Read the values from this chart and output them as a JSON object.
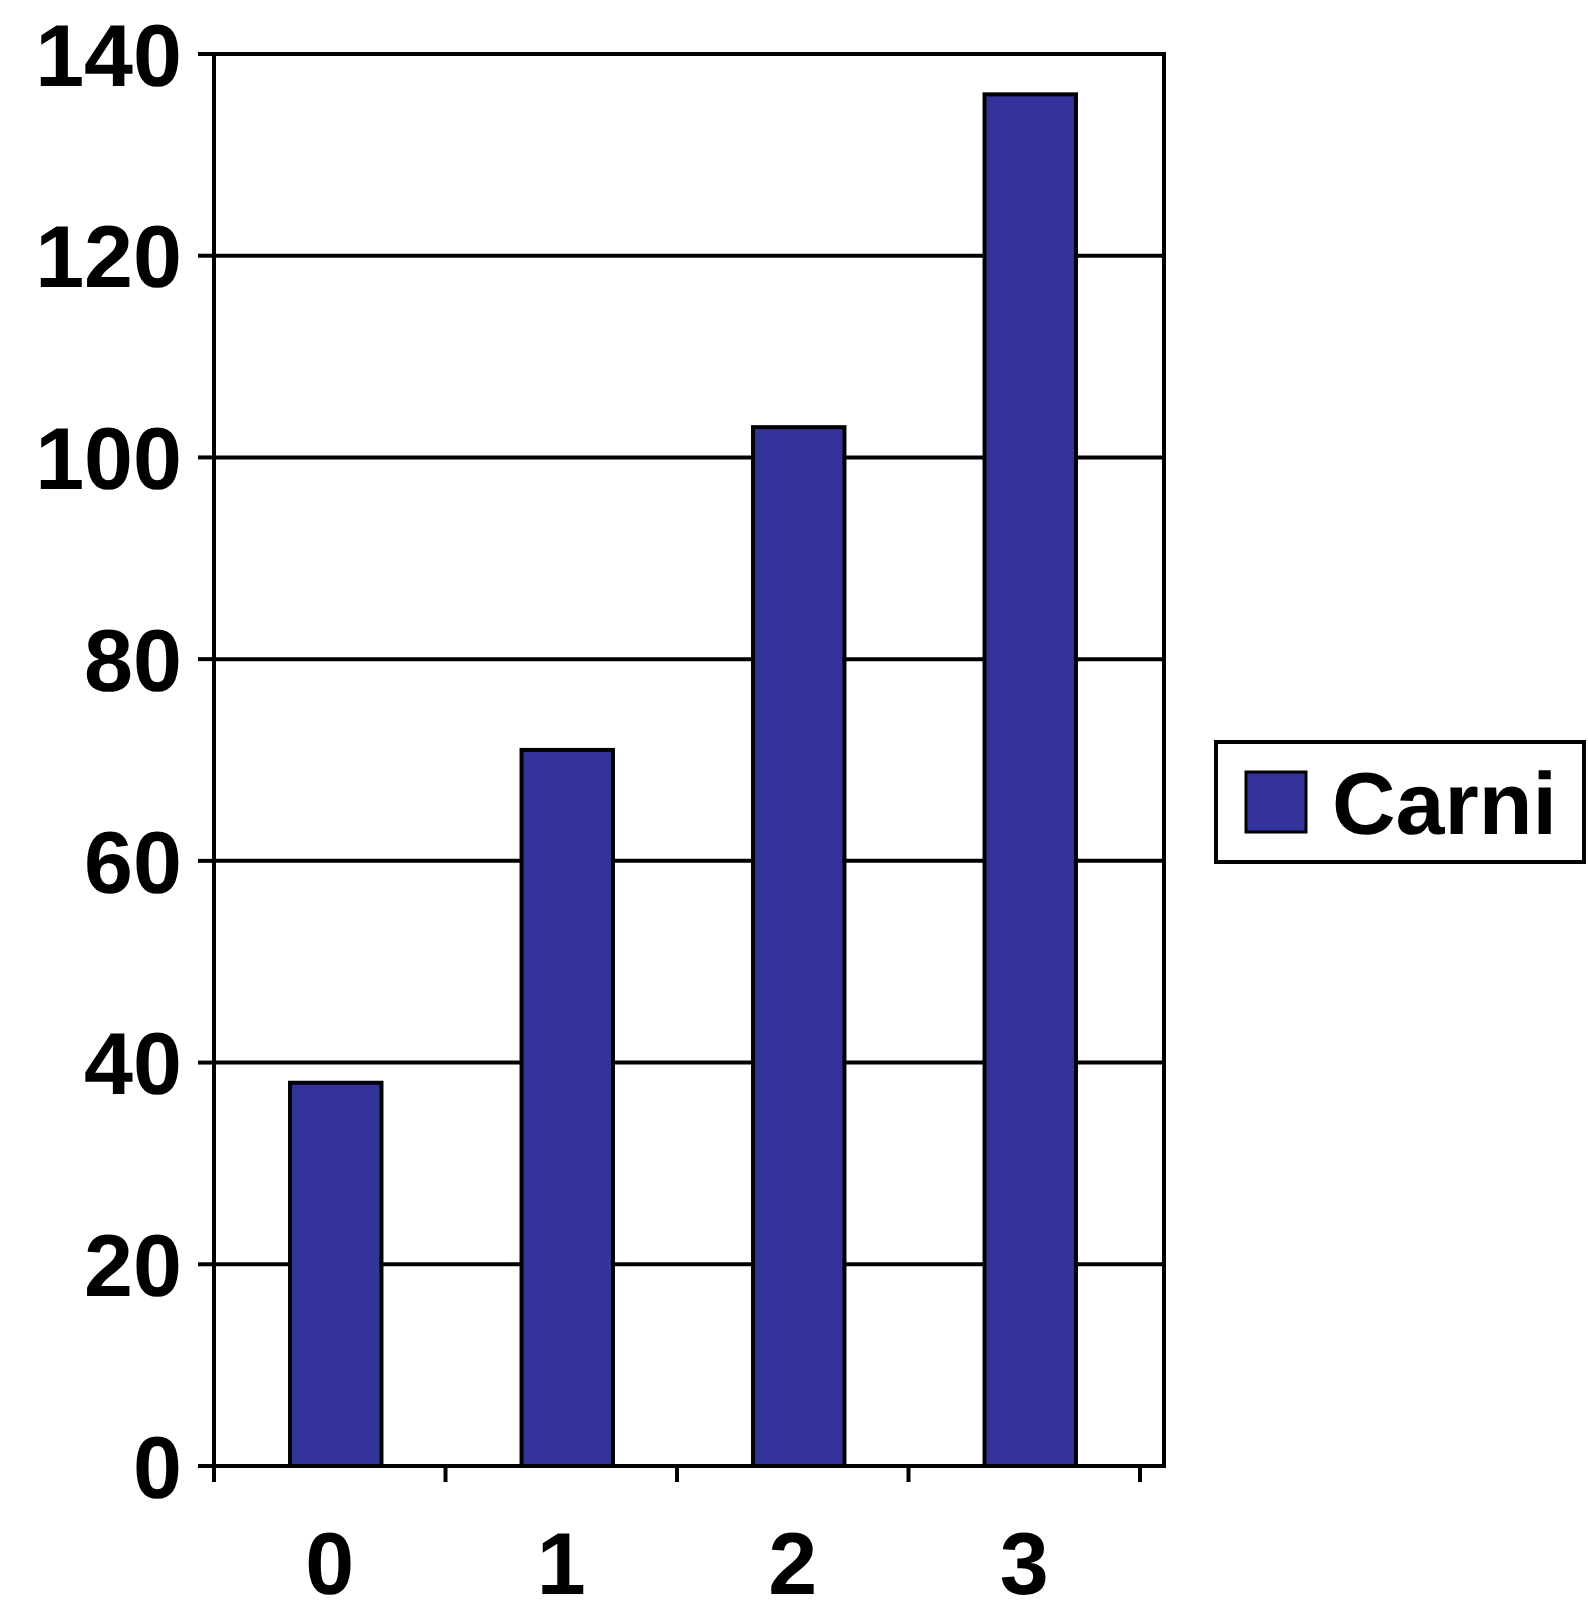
{
  "chart_data": {
    "type": "bar",
    "categories": [
      "0",
      "1",
      "2",
      "3"
    ],
    "series": [
      {
        "name": "Carni",
        "color": "#333399",
        "values": [
          38,
          71,
          103,
          136
        ]
      }
    ],
    "ylim": [
      0,
      140
    ],
    "yticks": [
      0,
      20,
      40,
      60,
      80,
      100,
      120,
      140
    ],
    "grid": "y",
    "legend": "right"
  }
}
